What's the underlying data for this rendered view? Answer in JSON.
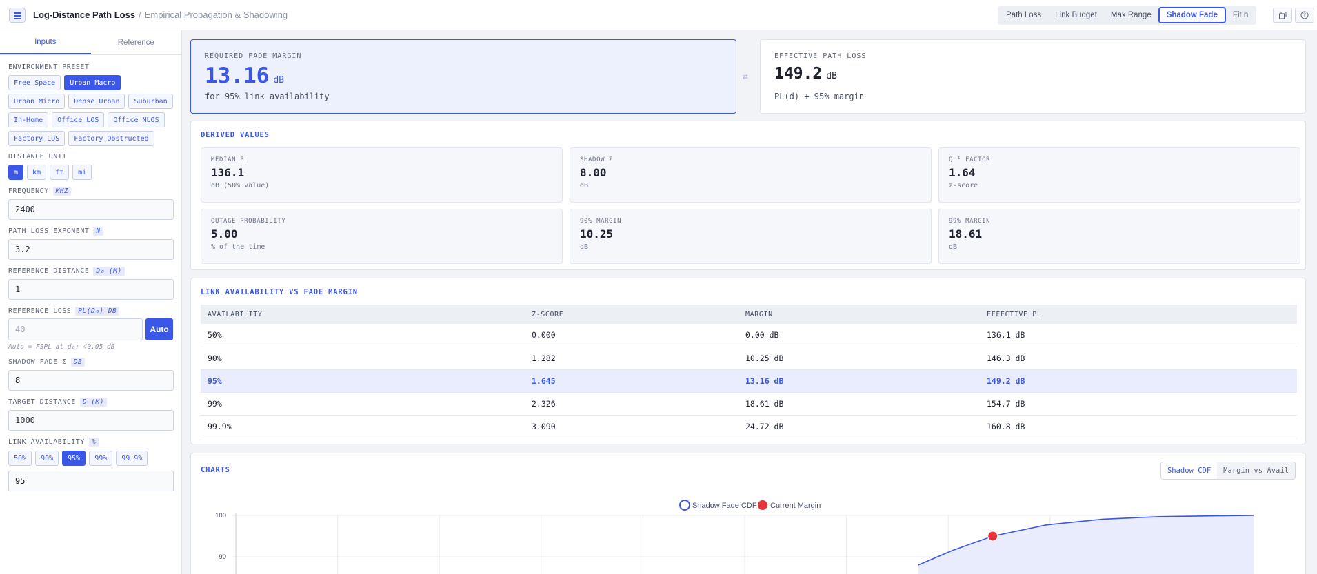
{
  "header": {
    "title": "Log-Distance Path Loss",
    "separator": "/",
    "subtitle": "Empirical Propagation & Shadowing",
    "modes": [
      {
        "label": "Path Loss",
        "active": false
      },
      {
        "label": "Link Budget",
        "active": false
      },
      {
        "label": "Max Range",
        "active": false
      },
      {
        "label": "Shadow Fade",
        "active": true
      },
      {
        "label": "Fit n",
        "active": false
      }
    ],
    "icons": [
      "copy-icon",
      "help-icon"
    ]
  },
  "sidebar": {
    "tabs": [
      {
        "label": "Inputs",
        "active": true
      },
      {
        "label": "Reference",
        "active": false
      }
    ],
    "env_label": "Environment Preset",
    "presets": [
      {
        "label": "Free Space",
        "active": false
      },
      {
        "label": "Urban Macro",
        "active": true
      },
      {
        "label": "Urban Micro",
        "active": false
      },
      {
        "label": "Dense Urban",
        "active": false
      },
      {
        "label": "Suburban",
        "active": false
      },
      {
        "label": "In-Home",
        "active": false
      },
      {
        "label": "Office LOS",
        "active": false
      },
      {
        "label": "Office NLOS",
        "active": false
      },
      {
        "label": "Factory LOS",
        "active": false
      },
      {
        "label": "Factory Obstructed",
        "active": false
      }
    ],
    "dist_unit_label": "Distance Unit",
    "dist_units": [
      {
        "label": "m",
        "active": true
      },
      {
        "label": "km",
        "active": false
      },
      {
        "label": "ft",
        "active": false
      },
      {
        "label": "mi",
        "active": false
      }
    ],
    "frequency": {
      "label": "Frequency",
      "unit": "MHZ",
      "value": "2400"
    },
    "exponent": {
      "label": "Path Loss Exponent",
      "unit": "N",
      "value": "3.2"
    },
    "ref_distance": {
      "label": "Reference Distance",
      "unit": "D₀ (M)",
      "value": "1"
    },
    "ref_loss": {
      "label": "Reference Loss",
      "unit": "PL(D₀) DB",
      "placeholder": "40",
      "button": "Auto",
      "hint": "Auto = FSPL at d₀: 40.05 dB"
    },
    "shadow": {
      "label": "Shadow Fade σ",
      "unit": "DB",
      "value": "8"
    },
    "target": {
      "label": "Target Distance",
      "unit": "D (M)",
      "value": "1000"
    },
    "availability": {
      "label": "Link Availability",
      "unit": "%",
      "options": [
        {
          "label": "50%",
          "active": false
        },
        {
          "label": "90%",
          "active": false
        },
        {
          "label": "95%",
          "active": true
        },
        {
          "label": "99%",
          "active": false
        },
        {
          "label": "99.9%",
          "active": false
        }
      ],
      "value": "95"
    }
  },
  "kpi": {
    "fade": {
      "label": "Required Fade Margin",
      "value": "13.16",
      "unit": "dB",
      "sub": "for 95% link availability"
    },
    "swap_icon": "swap-icon",
    "effective": {
      "label": "Effective Path Loss",
      "value": "149.2",
      "unit": "dB",
      "sub": "PL(d) + 95% margin"
    }
  },
  "derived": {
    "title": "Derived Values",
    "stats": [
      {
        "label": "Median PL",
        "value": "136.1",
        "unit": "dB (50% value)"
      },
      {
        "label": "Shadow σ",
        "value": "8.00",
        "unit": "dB"
      },
      {
        "label": "Q⁻¹ Factor",
        "value": "1.64",
        "unit": "z-score"
      },
      {
        "label": "Outage Probability",
        "value": "5.00",
        "unit": "% of the time"
      },
      {
        "label": "90% Margin",
        "value": "10.25",
        "unit": "dB"
      },
      {
        "label": "99% Margin",
        "value": "18.61",
        "unit": "dB"
      }
    ]
  },
  "table": {
    "title": "Link Availability vs Fade Margin",
    "headers": [
      "Availability",
      "Z-Score",
      "Margin",
      "Effective PL"
    ],
    "rows": [
      [
        "50%",
        "0.000",
        "0.00 dB",
        "136.1 dB"
      ],
      [
        "90%",
        "1.282",
        "10.25 dB",
        "146.3 dB"
      ],
      [
        "95%",
        "1.645",
        "13.16 dB",
        "149.2 dB"
      ],
      [
        "99%",
        "2.326",
        "18.61 dB",
        "154.7 dB"
      ],
      [
        "99.9%",
        "3.090",
        "24.72 dB",
        "160.8 dB"
      ]
    ],
    "highlight_row": 2
  },
  "charts": {
    "title": "Charts",
    "tabs": [
      {
        "label": "Shadow CDF",
        "active": true
      },
      {
        "label": "Margin vs Avail",
        "active": false
      }
    ]
  },
  "chart_data": {
    "type": "area",
    "legend": [
      "Shadow Fade CDF",
      "Current Margin"
    ],
    "legend_position": "top-center",
    "y_ticks": [
      "100",
      "90"
    ],
    "series": [
      {
        "name": "Shadow Fade CDF",
        "x": [
          9.2,
          11.0,
          13.16,
          16,
          19,
          22,
          25,
          27
        ],
        "y": [
          88.0,
          91.5,
          95,
          97.7,
          99.1,
          99.7,
          99.9,
          100
        ],
        "color": "#3a57e8"
      },
      {
        "name": "Current Margin",
        "x": [
          13.16
        ],
        "y": [
          95
        ],
        "color": "#e5343a"
      }
    ],
    "xlim": [
      -27,
      27
    ],
    "ylim": [
      88,
      100
    ],
    "grid": true
  }
}
